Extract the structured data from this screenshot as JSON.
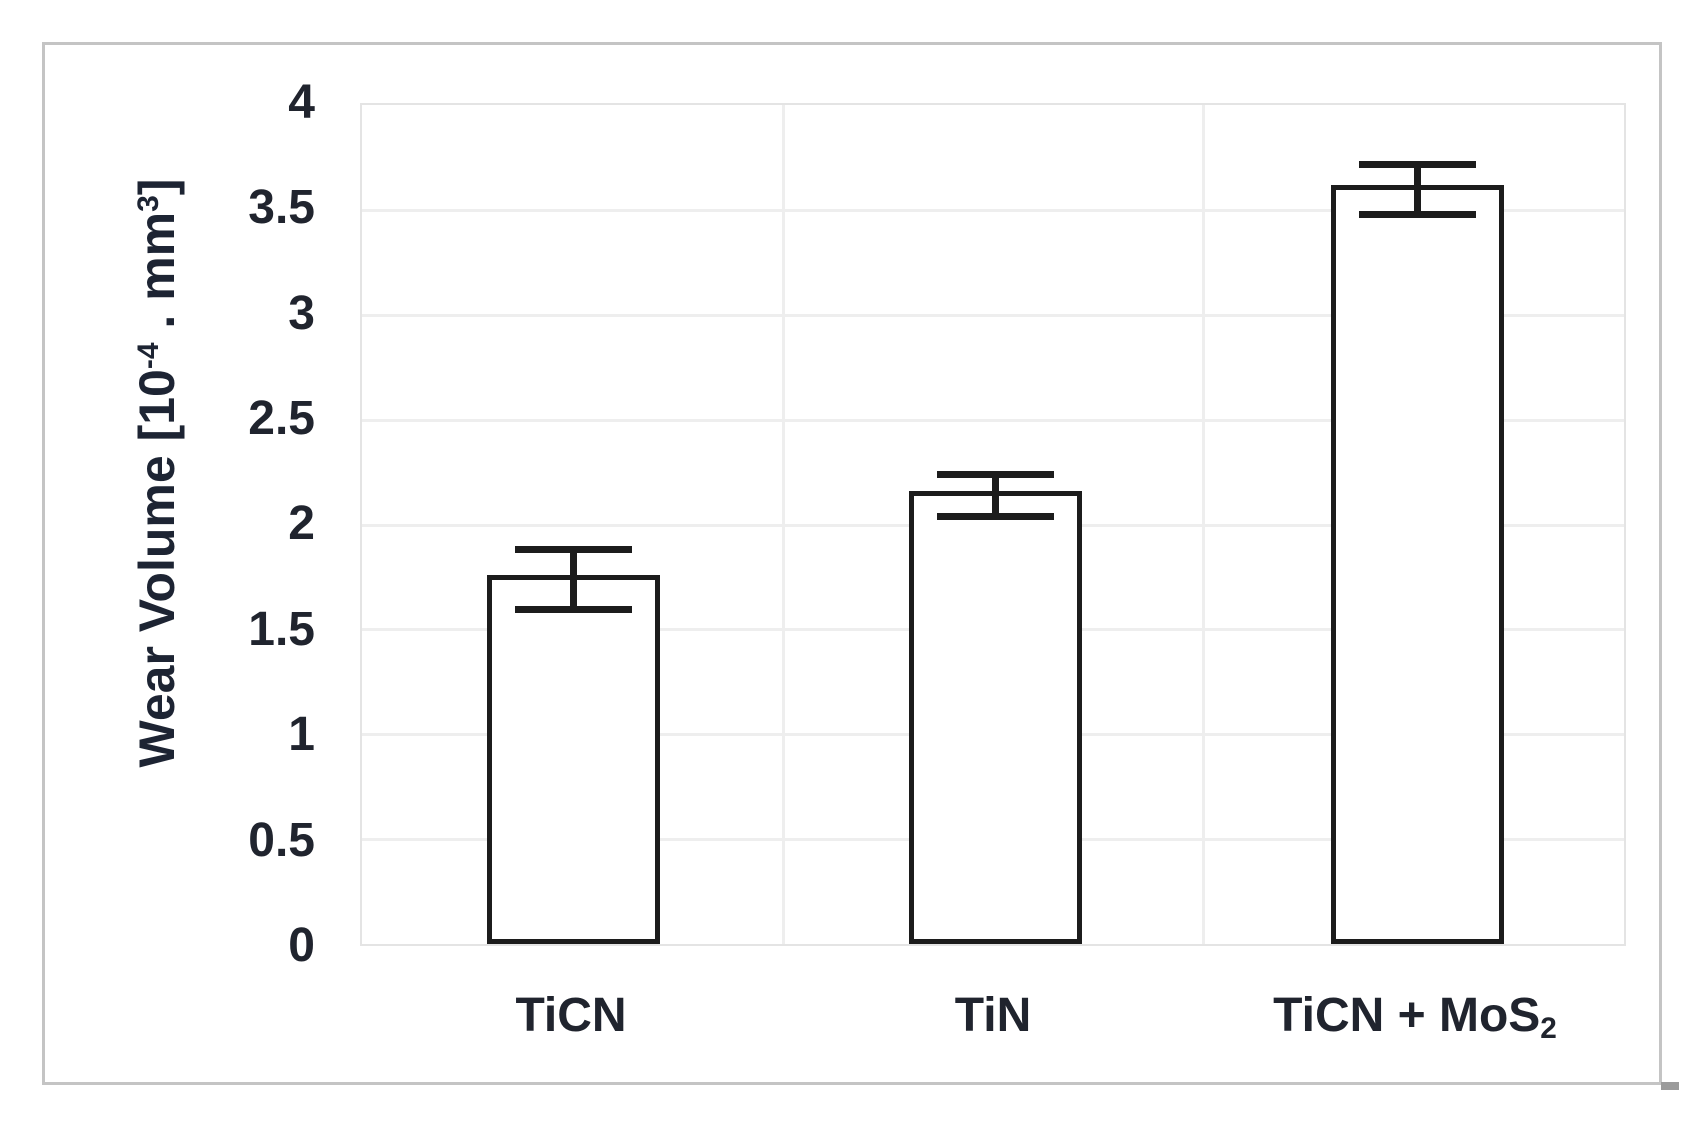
{
  "chart_data": {
    "type": "bar",
    "title": "",
    "ylabel_plain": "Wear Volume [10^-4 . mm^3]",
    "ylabel_parts": {
      "prefix": "Wear Volume [10",
      "sup1": "-4",
      "mid": " . mm",
      "sup2": "3",
      "suffix": "]"
    },
    "categories": [
      {
        "label": "TiCN",
        "sub": ""
      },
      {
        "label": "TiN",
        "sub": ""
      },
      {
        "label": "TiCN + MoS",
        "sub": "2"
      }
    ],
    "values": [
      1.75,
      2.15,
      3.6
    ],
    "error_bars": [
      0.14,
      0.1,
      0.12
    ],
    "yticks": [
      "4",
      "3.5",
      "3",
      "2.5",
      "2",
      "1.5",
      "1",
      "0.5",
      "0"
    ],
    "ylim": [
      0,
      4
    ],
    "ytick_step": 0.5,
    "legend": "none",
    "grid": "horizontal every 0.5 unit, vertical separators between categories",
    "colors": {
      "bar_fill": "#ffffff",
      "bar_border": "#1c1c1c",
      "error_bar": "#1c1c1c",
      "gridline": "#eeeeee",
      "text": "#20242e",
      "frame_border": "#c4c4c4",
      "background": "#ffffff"
    }
  }
}
